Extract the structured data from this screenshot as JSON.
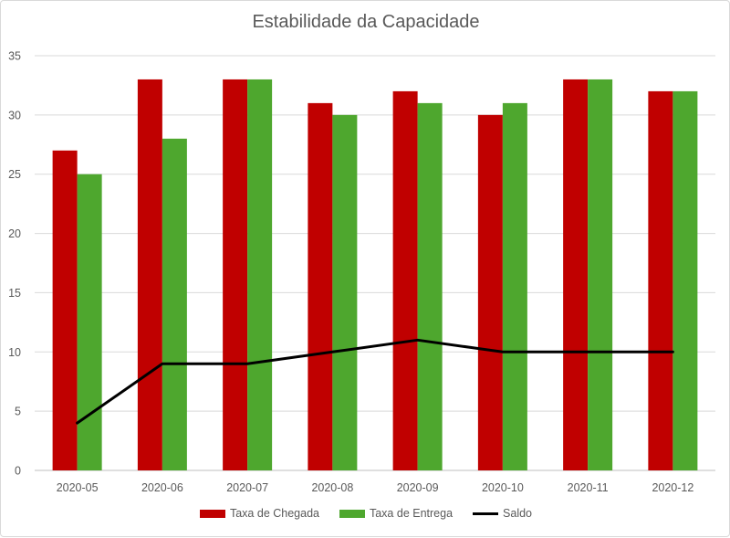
{
  "chart_data": {
    "type": "bar",
    "title": "Estabilidade da Capacidade",
    "categories": [
      "2020-05",
      "2020-06",
      "2020-07",
      "2020-08",
      "2020-09",
      "2020-10",
      "2020-11",
      "2020-12"
    ],
    "series": [
      {
        "name": "Taxa de Chegada",
        "type": "bar",
        "color": "#c00000",
        "values": [
          27,
          33,
          33,
          31,
          32,
          30,
          33,
          32
        ]
      },
      {
        "name": "Taxa de Entrega",
        "type": "bar",
        "color": "#4ea72e",
        "values": [
          25,
          28,
          33,
          30,
          31,
          31,
          33,
          32
        ]
      },
      {
        "name": "Saldo",
        "type": "line",
        "color": "#000000",
        "values": [
          4,
          9,
          9,
          10,
          11,
          10,
          10,
          10
        ]
      }
    ],
    "ylim": [
      0,
      35
    ],
    "yticks": [
      0,
      5,
      10,
      15,
      20,
      25,
      30,
      35
    ],
    "grid": true,
    "legend_position": "bottom"
  }
}
